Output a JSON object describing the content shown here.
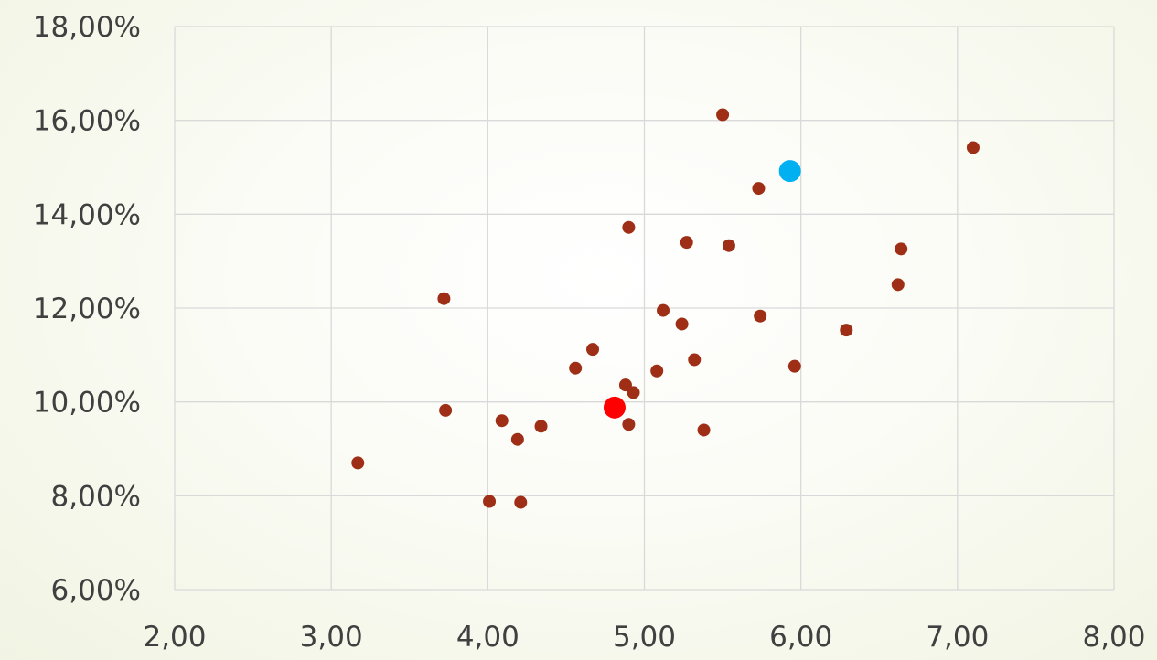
{
  "chart_data": {
    "type": "scatter",
    "title": "",
    "xlabel": "",
    "ylabel": "",
    "xlim": [
      2,
      8
    ],
    "ylim": [
      6,
      18
    ],
    "x_ticks": [
      "2,00",
      "3,00",
      "4,00",
      "5,00",
      "6,00",
      "7,00",
      "8,00"
    ],
    "y_ticks": [
      "6,00%",
      "8,00%",
      "10,00%",
      "12,00%",
      "14,00%",
      "16,00%",
      "18,00%"
    ],
    "grid": true,
    "colors": {
      "series": "#9e2f16",
      "highlight_red": "#ff0000",
      "highlight_blue": "#00b0f0"
    },
    "series": [
      {
        "color": "#9e2f16",
        "points": [
          [
            3.17,
            8.7
          ],
          [
            3.72,
            12.2
          ],
          [
            3.73,
            9.82
          ],
          [
            4.01,
            7.88
          ],
          [
            4.09,
            9.6
          ],
          [
            4.19,
            9.2
          ],
          [
            4.21,
            7.86
          ],
          [
            4.34,
            9.48
          ],
          [
            4.56,
            10.72
          ],
          [
            4.67,
            11.12
          ],
          [
            4.88,
            10.36
          ],
          [
            4.9,
            13.72
          ],
          [
            4.9,
            9.52
          ],
          [
            4.93,
            10.2
          ],
          [
            5.08,
            10.66
          ],
          [
            5.12,
            11.95
          ],
          [
            5.24,
            11.66
          ],
          [
            5.27,
            13.4
          ],
          [
            5.32,
            10.9
          ],
          [
            5.38,
            9.4
          ],
          [
            5.5,
            16.12
          ],
          [
            5.54,
            13.33
          ],
          [
            5.73,
            14.55
          ],
          [
            5.74,
            11.83
          ],
          [
            5.96,
            10.76
          ],
          [
            6.29,
            11.53
          ],
          [
            6.62,
            12.5
          ],
          [
            6.64,
            13.26
          ],
          [
            7.1,
            15.42
          ]
        ]
      },
      {
        "color": "#ff0000",
        "points": [
          [
            4.81,
            9.88
          ]
        ]
      },
      {
        "color": "#00b0f0",
        "points": [
          [
            5.93,
            14.92
          ]
        ]
      }
    ]
  }
}
